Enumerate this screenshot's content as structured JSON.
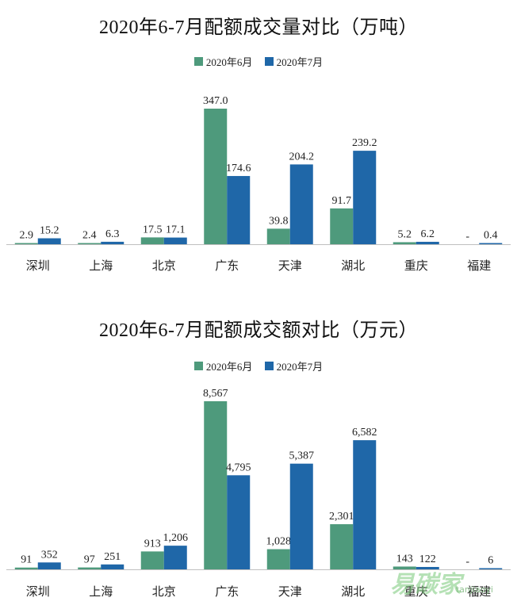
{
  "colors": {
    "june": "#4E9A7C",
    "july": "#1F67A8"
  },
  "watermark": {
    "text": "易碳家",
    "sub": "tanjiaoyi"
  },
  "chart_data": [
    {
      "type": "bar",
      "title": "2020年6-7月配额成交量对比（万吨）",
      "categories": [
        "深圳",
        "上海",
        "北京",
        "广东",
        "天津",
        "湖北",
        "重庆",
        "福建"
      ],
      "series": [
        {
          "name": "2020年6月",
          "values": [
            2.9,
            2.4,
            17.5,
            347.0,
            39.8,
            91.7,
            5.2,
            null
          ],
          "labels": [
            "2.9",
            "2.4",
            "17.5",
            "347.0",
            "39.8",
            "91.7",
            "5.2",
            "-"
          ]
        },
        {
          "name": "2020年7月",
          "values": [
            15.2,
            6.3,
            17.1,
            174.6,
            204.2,
            239.2,
            6.2,
            0.4
          ],
          "labels": [
            "15.2",
            "6.3",
            "17.1",
            "174.6",
            "204.2",
            "239.2",
            "6.2",
            "0.4"
          ]
        }
      ],
      "ylim": [
        0,
        347
      ]
    },
    {
      "type": "bar",
      "title": "2020年6-7月配额成交额对比（万元）",
      "categories": [
        "深圳",
        "上海",
        "北京",
        "广东",
        "天津",
        "湖北",
        "重庆",
        "福建"
      ],
      "series": [
        {
          "name": "2020年6月",
          "values": [
            91,
            97,
            913,
            8567,
            1028,
            2301,
            143,
            null
          ],
          "labels": [
            "91",
            "97",
            "913",
            "8,567",
            "1,028",
            "2,301",
            "143",
            "-"
          ]
        },
        {
          "name": "2020年7月",
          "values": [
            352,
            251,
            1206,
            4795,
            5387,
            6582,
            122,
            6
          ],
          "labels": [
            "352",
            "251",
            "1,206",
            "4,795",
            "5,387",
            "6,582",
            "122",
            "6"
          ]
        }
      ],
      "ylim": [
        0,
        8567
      ]
    }
  ]
}
